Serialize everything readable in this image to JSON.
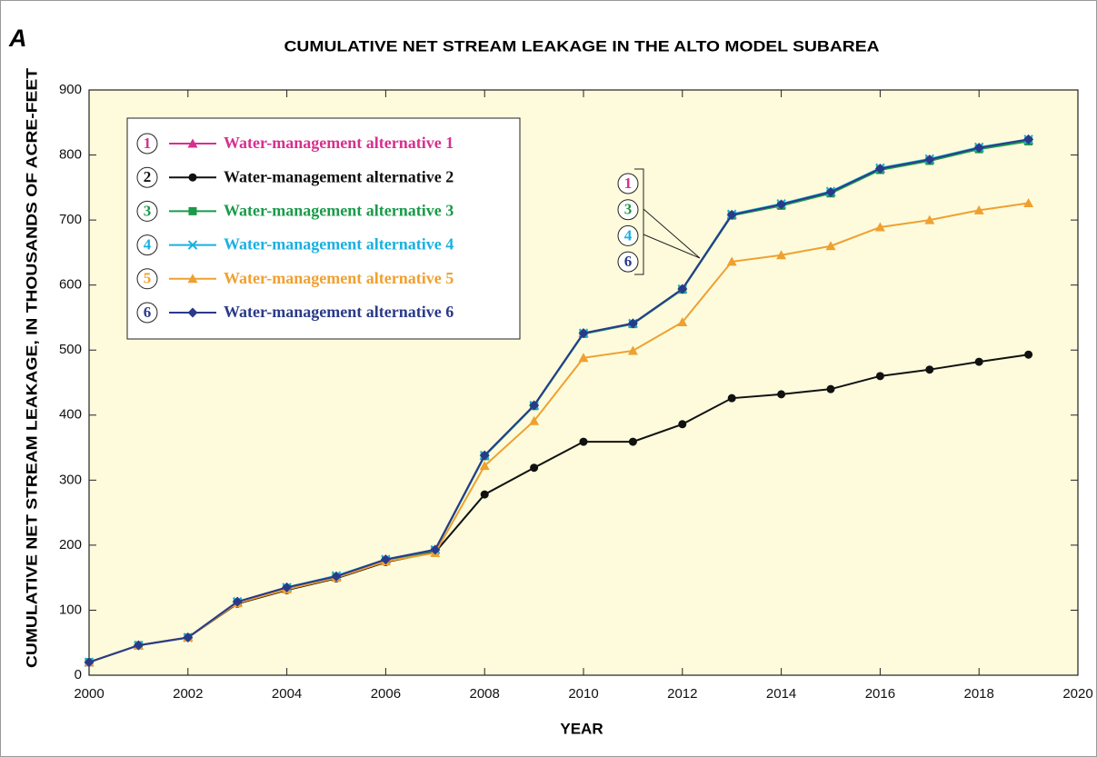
{
  "chart_data": {
    "type": "line",
    "panel_label": "A",
    "title": "CUMULATIVE NET STREAM LEAKAGE IN THE ALTO MODEL SUBAREA",
    "xlabel": "YEAR",
    "ylabel": "CUMULATIVE NET STREAM LEAKAGE, IN THOUSANDS OF ACRE-FEET",
    "x": [
      2000,
      2001,
      2002,
      2003,
      2004,
      2005,
      2006,
      2007,
      2008,
      2009,
      2010,
      2011,
      2012,
      2013,
      2014,
      2015,
      2016,
      2017,
      2018,
      2019
    ],
    "xlim": [
      2000,
      2020
    ],
    "xticks": [
      2000,
      2002,
      2004,
      2006,
      2008,
      2010,
      2012,
      2014,
      2016,
      2018,
      2020
    ],
    "ylim": [
      0,
      900
    ],
    "yticks": [
      0,
      100,
      200,
      300,
      400,
      500,
      600,
      700,
      800,
      900
    ],
    "grid": false,
    "legend": "upper left",
    "callout": [
      0,
      2,
      3,
      5
    ],
    "series": [
      {
        "name": "Water-management alternative 1",
        "label": "1",
        "color": "#d6308e",
        "marker": "triangle",
        "values": [
          20,
          46,
          58,
          113,
          135,
          152,
          178,
          193,
          338,
          415,
          526,
          541,
          594,
          708,
          724,
          743,
          779,
          793,
          811,
          823
        ]
      },
      {
        "name": "Water-management alternative 2",
        "label": "2",
        "color": "#111111",
        "marker": "circle",
        "values": [
          20,
          46,
          58,
          110,
          131,
          149,
          174,
          189,
          278,
          319,
          359,
          359,
          386,
          426,
          432,
          440,
          460,
          470,
          482,
          493
        ]
      },
      {
        "name": "Water-management alternative 3",
        "label": "3",
        "color": "#1a9a4a",
        "marker": "square",
        "values": [
          20,
          46,
          58,
          112,
          134,
          151,
          177,
          192,
          337,
          414,
          525,
          540,
          593,
          707,
          722,
          741,
          777,
          791,
          809,
          821
        ]
      },
      {
        "name": "Water-management alternative 4",
        "label": "4",
        "color": "#1ab0e0",
        "marker": "x",
        "values": [
          20,
          46,
          58,
          113,
          135,
          153,
          178,
          193,
          338,
          415,
          526,
          541,
          594,
          709,
          725,
          744,
          780,
          794,
          812,
          824
        ]
      },
      {
        "name": "Water-management alternative 5",
        "label": "5",
        "color": "#f0a030",
        "marker": "triangle",
        "values": [
          20,
          46,
          58,
          111,
          132,
          150,
          175,
          188,
          322,
          391,
          488,
          499,
          543,
          636,
          646,
          660,
          689,
          700,
          715,
          726
        ]
      },
      {
        "name": "Water-management alternative 6",
        "label": "6",
        "color": "#2a3a8a",
        "marker": "diamond",
        "values": [
          20,
          46,
          58,
          113,
          135,
          152,
          178,
          193,
          338,
          415,
          526,
          541,
          594,
          708,
          724,
          743,
          779,
          793,
          811,
          824
        ]
      }
    ]
  }
}
